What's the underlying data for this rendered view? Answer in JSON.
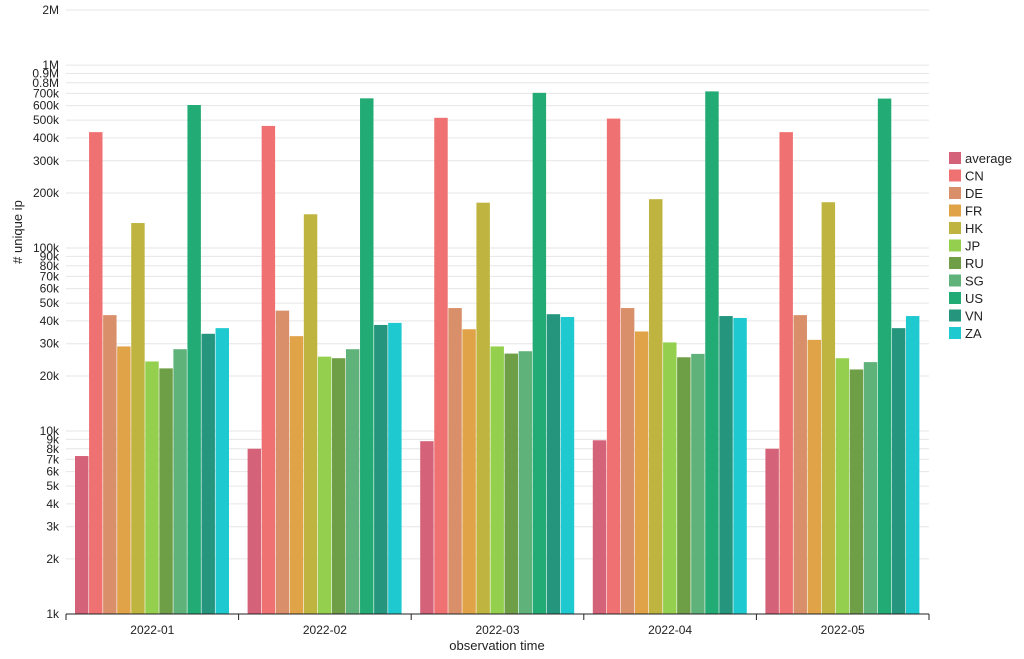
{
  "chart_data": {
    "type": "bar",
    "title": "",
    "xlabel": "observation time",
    "ylabel": "# unique ip",
    "y_scale": "log",
    "ylim": [
      1000,
      2000000
    ],
    "grid": true,
    "legend_position": "right",
    "categories": [
      "2022-01",
      "2022-02",
      "2022-03",
      "2022-04",
      "2022-05"
    ],
    "y_ticks": [
      {
        "value": 1000,
        "label": "1k"
      },
      {
        "value": 2000,
        "label": "2k"
      },
      {
        "value": 3000,
        "label": "3k"
      },
      {
        "value": 4000,
        "label": "4k"
      },
      {
        "value": 5000,
        "label": "5k"
      },
      {
        "value": 6000,
        "label": "6k"
      },
      {
        "value": 7000,
        "label": "7k"
      },
      {
        "value": 8000,
        "label": "8k"
      },
      {
        "value": 9000,
        "label": "9k"
      },
      {
        "value": 10000,
        "label": "10k"
      },
      {
        "value": 20000,
        "label": "20k"
      },
      {
        "value": 30000,
        "label": "30k"
      },
      {
        "value": 40000,
        "label": "40k"
      },
      {
        "value": 50000,
        "label": "50k"
      },
      {
        "value": 60000,
        "label": "60k"
      },
      {
        "value": 70000,
        "label": "70k"
      },
      {
        "value": 80000,
        "label": "80k"
      },
      {
        "value": 90000,
        "label": "90k"
      },
      {
        "value": 100000,
        "label": "100k"
      },
      {
        "value": 200000,
        "label": "200k"
      },
      {
        "value": 300000,
        "label": "300k"
      },
      {
        "value": 400000,
        "label": "400k"
      },
      {
        "value": 500000,
        "label": "500k"
      },
      {
        "value": 600000,
        "label": "600k"
      },
      {
        "value": 700000,
        "label": "700k"
      },
      {
        "value": 800000,
        "label": "0.8M"
      },
      {
        "value": 900000,
        "label": "0.9M"
      },
      {
        "value": 1000000,
        "label": "1M"
      },
      {
        "value": 2000000,
        "label": "2M"
      }
    ],
    "series": [
      {
        "name": "average",
        "color": "#d4637a",
        "values": [
          7300,
          8000,
          8800,
          8900,
          8000
        ]
      },
      {
        "name": "CN",
        "color": "#f07171",
        "values": [
          430000,
          465000,
          515000,
          510000,
          430000
        ]
      },
      {
        "name": "DE",
        "color": "#d9906a",
        "values": [
          43000,
          45500,
          47000,
          47000,
          43000
        ]
      },
      {
        "name": "FR",
        "color": "#e0a348",
        "values": [
          29000,
          33000,
          36000,
          35000,
          31500
        ]
      },
      {
        "name": "HK",
        "color": "#bfb440",
        "values": [
          137000,
          153000,
          177000,
          185000,
          178000
        ]
      },
      {
        "name": "JP",
        "color": "#94d04e",
        "values": [
          24000,
          25500,
          29000,
          30500,
          25000
        ]
      },
      {
        "name": "RU",
        "color": "#6e9e45",
        "values": [
          22000,
          25000,
          26500,
          25300,
          21700
        ]
      },
      {
        "name": "SG",
        "color": "#5fb37a",
        "values": [
          28000,
          28000,
          27300,
          26400,
          23800
        ]
      },
      {
        "name": "US",
        "color": "#22ab74",
        "values": [
          605000,
          658000,
          705000,
          718000,
          656000
        ]
      },
      {
        "name": "VN",
        "color": "#25967d",
        "values": [
          34000,
          38000,
          43500,
          42500,
          36500
        ]
      },
      {
        "name": "ZA",
        "color": "#1fc9d0",
        "values": [
          36500,
          39000,
          42000,
          41500,
          42500
        ]
      }
    ]
  }
}
